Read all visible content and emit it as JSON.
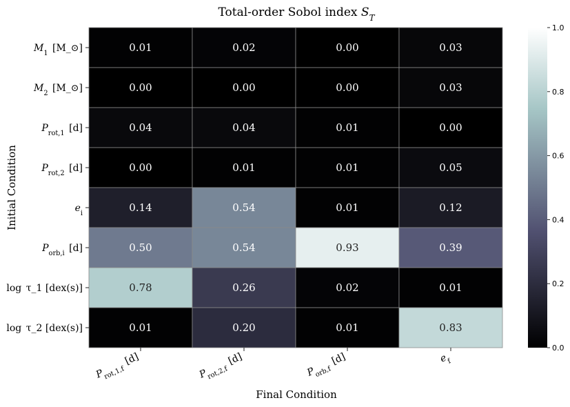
{
  "chart_data": {
    "type": "heatmap",
    "title": "Total-order Sobol index S_T",
    "xlabel": "Final Condition",
    "ylabel": "Initial Condition",
    "x_categories": [
      "P_rot,1,f [d]",
      "P_rot,2,f [d]",
      "P_orb,f [d]",
      "e_f"
    ],
    "y_categories": [
      "M_1 [M_⊙]",
      "M_2 [M_⊙]",
      "P_rot,1 [d]",
      "P_rot,2 [d]",
      "e_i",
      "P_orb,i [d]",
      "log τ_1 [dex(s)]",
      "log τ_2 [dex(s)]"
    ],
    "values": [
      [
        0.01,
        0.02,
        0.0,
        0.03
      ],
      [
        0.0,
        0.0,
        0.0,
        0.03
      ],
      [
        0.04,
        0.04,
        0.01,
        0.0
      ],
      [
        0.0,
        0.01,
        0.01,
        0.05
      ],
      [
        0.14,
        0.54,
        0.01,
        0.12
      ],
      [
        0.5,
        0.54,
        0.93,
        0.39
      ],
      [
        0.78,
        0.26,
        0.02,
        0.01
      ],
      [
        0.01,
        0.2,
        0.01,
        0.83
      ]
    ],
    "value_labels": [
      [
        "0.01",
        "0.02",
        "0.00",
        "0.03"
      ],
      [
        "0.00",
        "0.00",
        "0.00",
        "0.03"
      ],
      [
        "0.04",
        "0.04",
        "0.01",
        "0.00"
      ],
      [
        "0.00",
        "0.01",
        "0.01",
        "0.05"
      ],
      [
        "0.14",
        "0.54",
        "0.01",
        "0.12"
      ],
      [
        "0.50",
        "0.54",
        "0.93",
        "0.39"
      ],
      [
        "0.78",
        "0.26",
        "0.02",
        "0.01"
      ],
      [
        "0.01",
        "0.20",
        "0.01",
        "0.83"
      ]
    ],
    "colormap": "bone",
    "vmin": 0.0,
    "vmax": 1.0,
    "colorbar_ticks": [
      "0.0",
      "0.2",
      "0.4",
      "0.6",
      "0.8",
      "1.0"
    ],
    "grid": true
  }
}
